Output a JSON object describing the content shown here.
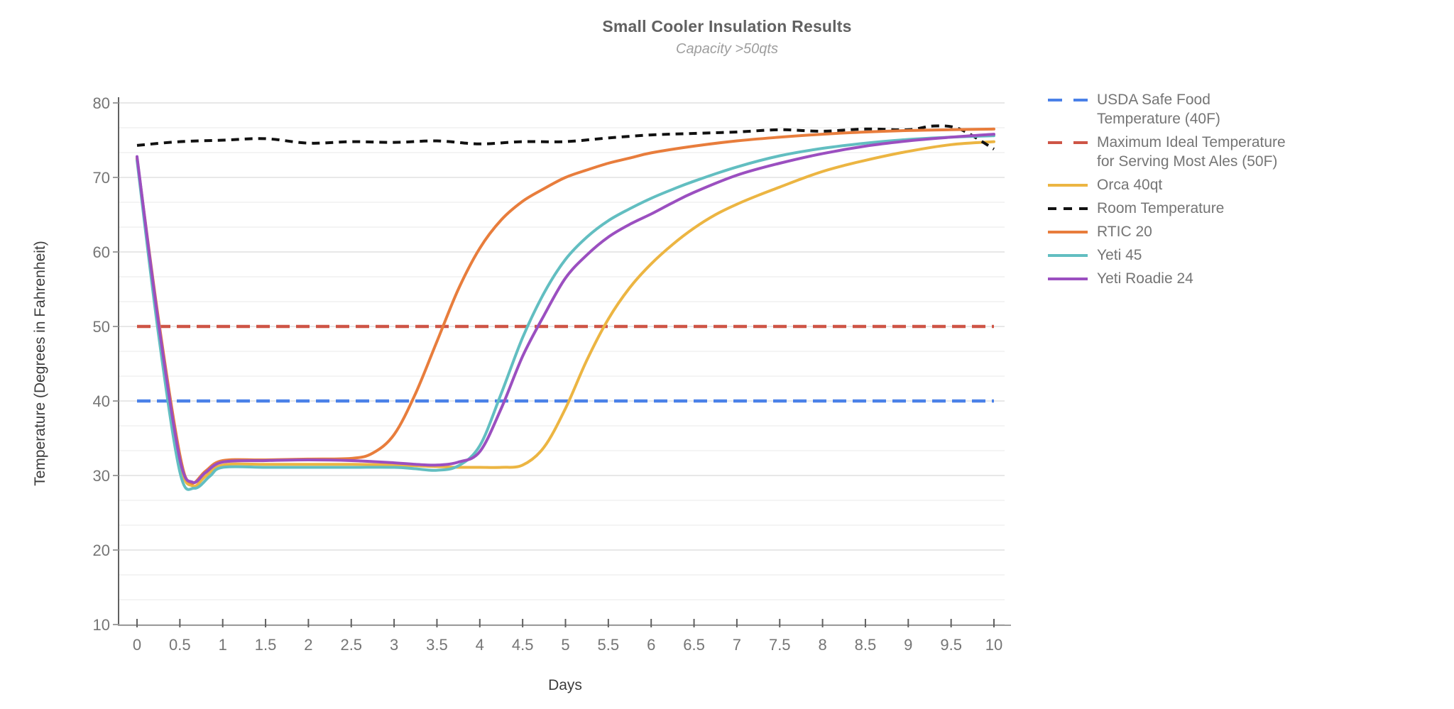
{
  "page": {
    "background": "#ffffff"
  },
  "colors": {
    "title_text": "#616161",
    "subtitle_text": "#9e9e9e",
    "axis_title_text": "#3c3c3c",
    "tick_label_text": "#757575",
    "legend_text": "#757575",
    "y_axis_line": "#616161",
    "x_axis_line": "#9e9e9e",
    "tick_mark": "#616161",
    "gridline_major": "#e0e0e0",
    "gridline_minor": "#f1f1f1"
  },
  "chart_data": {
    "type": "line",
    "title": "Small Cooler Insulation Results",
    "subtitle": "Capacity >50qts",
    "xlabel": "Days",
    "ylabel": "Temperature (Degrees in Fahrenheit)",
    "xlim": [
      0,
      10
    ],
    "ylim": [
      10,
      80
    ],
    "x_ticks": [
      0,
      0.5,
      1,
      1.5,
      2,
      2.5,
      3,
      3.5,
      4,
      4.5,
      5,
      5.5,
      6,
      6.5,
      7,
      7.5,
      8,
      8.5,
      9,
      9.5,
      10
    ],
    "x_tick_labels": [
      "0",
      "0.5",
      "1",
      "1.5",
      "2",
      "2.5",
      "3",
      "3.5",
      "4",
      "4.5",
      "5",
      "5.5",
      "6",
      "6.5",
      "7",
      "7.5",
      "8",
      "8.5",
      "9",
      "9.5",
      "10"
    ],
    "y_ticks": [
      10,
      20,
      30,
      40,
      50,
      60,
      70,
      80
    ],
    "y_tick_labels": [
      "10",
      "20",
      "30",
      "40",
      "50",
      "60",
      "70",
      "80"
    ],
    "grid": {
      "horizontal_major": true,
      "minor_divisions_per_major": 3,
      "vertical": false
    },
    "legend_position": "right",
    "series": [
      {
        "name": "USDA Safe Food Temperature (40F)",
        "legend_lines": [
          "USDA Safe Food",
          "Temperature (40F)"
        ],
        "kind": "reference",
        "dash": "long",
        "color": "#4A81E8",
        "y_value": 40
      },
      {
        "name": "Maximum Ideal Temperature for Serving Most Ales (50F)",
        "legend_lines": [
          "Maximum Ideal Temperature",
          "for Serving Most Ales (50F)"
        ],
        "kind": "reference",
        "dash": "long",
        "color": "#CE5546",
        "y_value": 50
      },
      {
        "name": "Orca 40qt",
        "legend_lines": [
          "Orca 40qt"
        ],
        "kind": "line",
        "dash": "none",
        "color": "#ECB542",
        "x": [
          0,
          0.25,
          0.5,
          0.65,
          0.8,
          1,
          1.5,
          2,
          2.5,
          3,
          3.5,
          3.75,
          4,
          4.25,
          4.5,
          4.75,
          5,
          5.25,
          5.5,
          5.75,
          6,
          6.25,
          6.5,
          6.75,
          7,
          7.25,
          7.5,
          7.75,
          8,
          8.25,
          8.5,
          9,
          9.5,
          10
        ],
        "y": [
          72.5,
          50,
          31.8,
          28.6,
          29.9,
          31.4,
          31.5,
          31.5,
          31.5,
          31.4,
          31.2,
          31.1,
          31.1,
          31.1,
          31.4,
          33.8,
          39,
          45.5,
          51,
          55.2,
          58.4,
          61,
          63.2,
          65,
          66.4,
          67.6,
          68.7,
          69.8,
          70.8,
          71.6,
          72.3,
          73.5,
          74.4,
          74.8
        ]
      },
      {
        "name": "Room Temperature",
        "legend_lines": [
          "Room Temperature"
        ],
        "kind": "line",
        "dash": "short",
        "color": "#111111",
        "x": [
          0,
          0.5,
          1,
          1.5,
          2,
          2.5,
          3,
          3.5,
          4,
          4.5,
          5,
          5.5,
          6,
          6.5,
          7,
          7.5,
          8,
          8.5,
          9,
          9.3,
          9.6,
          10
        ],
        "y": [
          74.3,
          74.8,
          75.0,
          75.2,
          74.6,
          74.8,
          74.7,
          74.9,
          74.5,
          74.8,
          74.8,
          75.3,
          75.7,
          75.9,
          76.1,
          76.4,
          76.2,
          76.5,
          76.4,
          76.9,
          76.5,
          73.8
        ]
      },
      {
        "name": "RTIC 20",
        "legend_lines": [
          "RTIC 20"
        ],
        "kind": "line",
        "dash": "none",
        "color": "#E87D3C",
        "x": [
          0,
          0.25,
          0.5,
          0.63,
          0.8,
          1,
          1.5,
          2,
          2.5,
          2.75,
          3,
          3.25,
          3.5,
          3.75,
          4,
          4.25,
          4.5,
          4.75,
          5,
          5.25,
          5.5,
          5.75,
          6,
          6.5,
          7,
          7.5,
          8,
          8.5,
          9,
          9.5,
          10
        ],
        "y": [
          72.6,
          51,
          32.8,
          29.0,
          30.6,
          32.0,
          32.1,
          32.2,
          32.3,
          33.0,
          35.5,
          41,
          48,
          55,
          60.5,
          64.3,
          66.8,
          68.5,
          70,
          71,
          71.9,
          72.6,
          73.3,
          74.2,
          74.9,
          75.4,
          75.8,
          76.1,
          76.3,
          76.4,
          76.5
        ]
      },
      {
        "name": "Yeti 45",
        "legend_lines": [
          "Yeti 45"
        ],
        "kind": "line",
        "dash": "none",
        "color": "#62BEC1",
        "x": [
          0,
          0.25,
          0.5,
          0.67,
          0.85,
          1,
          1.5,
          2,
          2.5,
          3,
          3.25,
          3.5,
          3.75,
          4,
          4.25,
          4.5,
          4.75,
          5,
          5.25,
          5.5,
          5.75,
          6,
          6.25,
          6.5,
          7,
          7.5,
          8,
          8.5,
          9,
          9.5,
          10
        ],
        "y": [
          72.3,
          49,
          30.5,
          28.3,
          29.9,
          31.1,
          31.1,
          31.1,
          31.1,
          31.1,
          30.9,
          30.7,
          31.3,
          34,
          41,
          48.5,
          54.5,
          59,
          62,
          64.2,
          65.8,
          67.2,
          68.4,
          69.5,
          71.4,
          72.9,
          73.9,
          74.6,
          75.1,
          75.4,
          75.6
        ]
      },
      {
        "name": "Yeti Roadie 24",
        "legend_lines": [
          "Yeti Roadie 24"
        ],
        "kind": "line",
        "dash": "none",
        "color": "#9B4FC0",
        "x": [
          0,
          0.25,
          0.5,
          0.65,
          0.8,
          1,
          1.5,
          2,
          2.5,
          3,
          3.25,
          3.5,
          3.75,
          4,
          4.25,
          4.5,
          4.75,
          5,
          5.25,
          5.5,
          5.75,
          6,
          6.25,
          6.5,
          7,
          7.5,
          8,
          8.5,
          9,
          9.5,
          10
        ],
        "y": [
          72.8,
          50.5,
          32.2,
          29.1,
          30.4,
          31.8,
          32.0,
          32.1,
          32.0,
          31.7,
          31.5,
          31.4,
          31.8,
          33.2,
          39,
          46,
          51.5,
          56.5,
          59.6,
          62,
          63.7,
          65.1,
          66.6,
          68,
          70.3,
          71.9,
          73.2,
          74.2,
          74.9,
          75.4,
          75.8
        ]
      }
    ]
  }
}
